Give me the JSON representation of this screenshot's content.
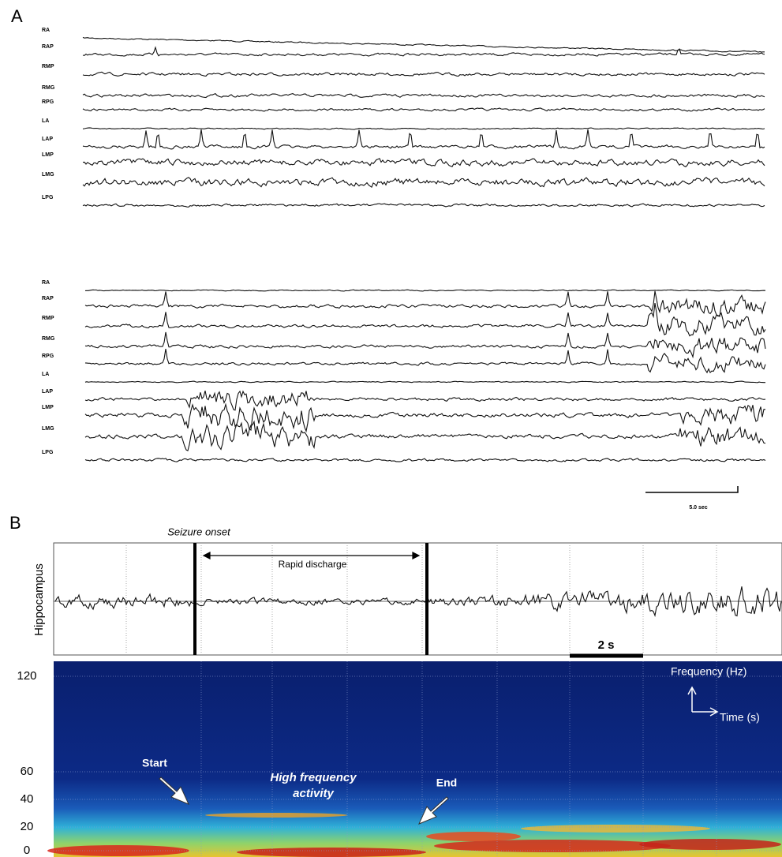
{
  "panel_a": {
    "label": "A",
    "upper_channels": [
      "RA",
      "RAP",
      "RMP",
      "RMG",
      "RPG",
      "LA",
      "LAP",
      "LMP",
      "LMG",
      "LPG"
    ],
    "lower_channels": [
      "RA",
      "RAP",
      "RMP",
      "RMG",
      "RPG",
      "LA",
      "LAP",
      "LMP",
      "LMG",
      "LPG"
    ],
    "scale_bar": "5.0 sec"
  },
  "panel_b": {
    "label": "B",
    "seizure_onset": "Seizure onset",
    "trace_label": "Hippocampus",
    "rapid_discharge": "Rapid discharge",
    "scale_bar": "2 s",
    "spectrogram": {
      "yticks": [
        120,
        60,
        40,
        20,
        0
      ],
      "frequency_axis": "Frequency (Hz)",
      "time_axis": "Time (s)",
      "start": "Start",
      "high_frequency_activity": [
        "High frequency",
        "activity"
      ],
      "end": "End"
    }
  }
}
